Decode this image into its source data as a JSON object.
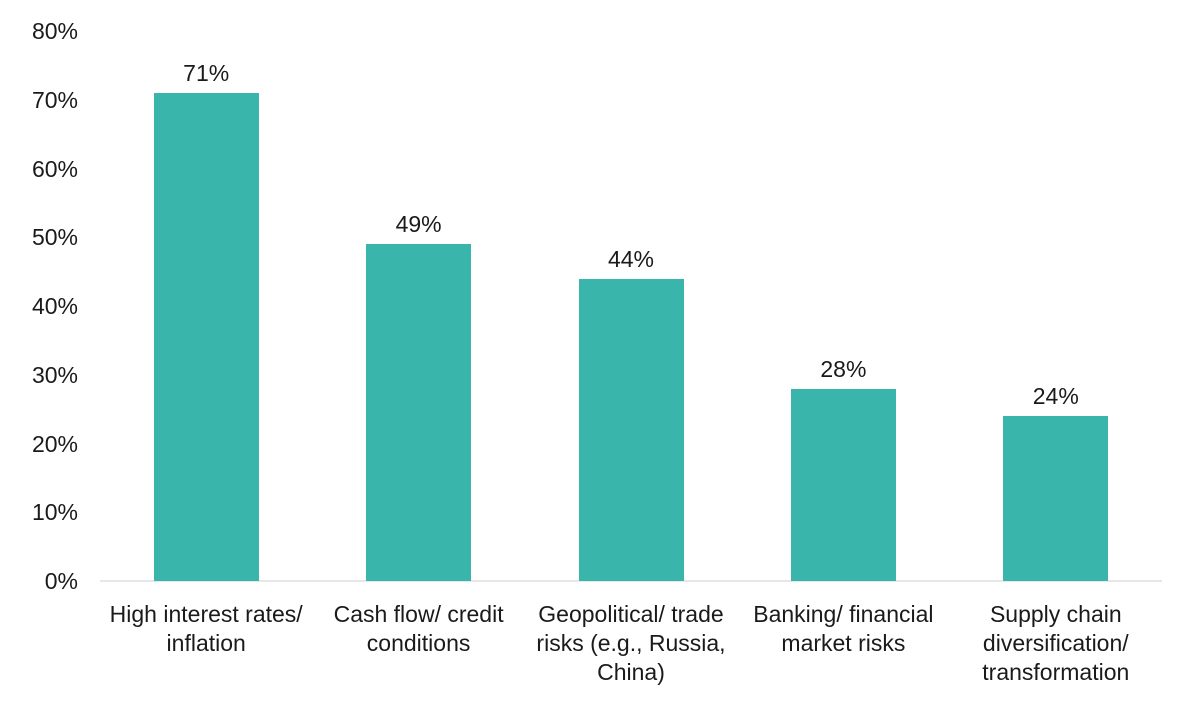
{
  "chart_data": {
    "type": "bar",
    "title": "",
    "xlabel": "",
    "ylabel": "",
    "categories": [
      "High interest rates/ inflation",
      "Cash flow/ credit conditions",
      "Geopolitical/ trade risks (e.g., Russia, China)",
      "Banking/ financial market risks",
      "Supply chain diversification/ transformation"
    ],
    "category_label_lines": [
      [
        "High interest rates/",
        "inflation"
      ],
      [
        "Cash flow/ credit",
        "conditions"
      ],
      [
        "Geopolitical/ trade",
        "risks (e.g., Russia,",
        "China)"
      ],
      [
        "Banking/ financial",
        "market risks"
      ],
      [
        "Supply chain",
        "diversification/",
        "transformation"
      ]
    ],
    "values": [
      71,
      49,
      44,
      28,
      24
    ],
    "value_labels": [
      "71%",
      "49%",
      "44%",
      "28%",
      "24%"
    ],
    "ylim": [
      0,
      80
    ],
    "ytick_step": 10,
    "ytick_labels": [
      "0%",
      "10%",
      "20%",
      "30%",
      "40%",
      "50%",
      "60%",
      "70%",
      "80%"
    ],
    "grid": false,
    "legend": null,
    "colors": {
      "bar": "#3ab5ab",
      "text": "#1a1a1a",
      "axis_line": "#e7e7e7",
      "background": "#ffffff"
    }
  }
}
